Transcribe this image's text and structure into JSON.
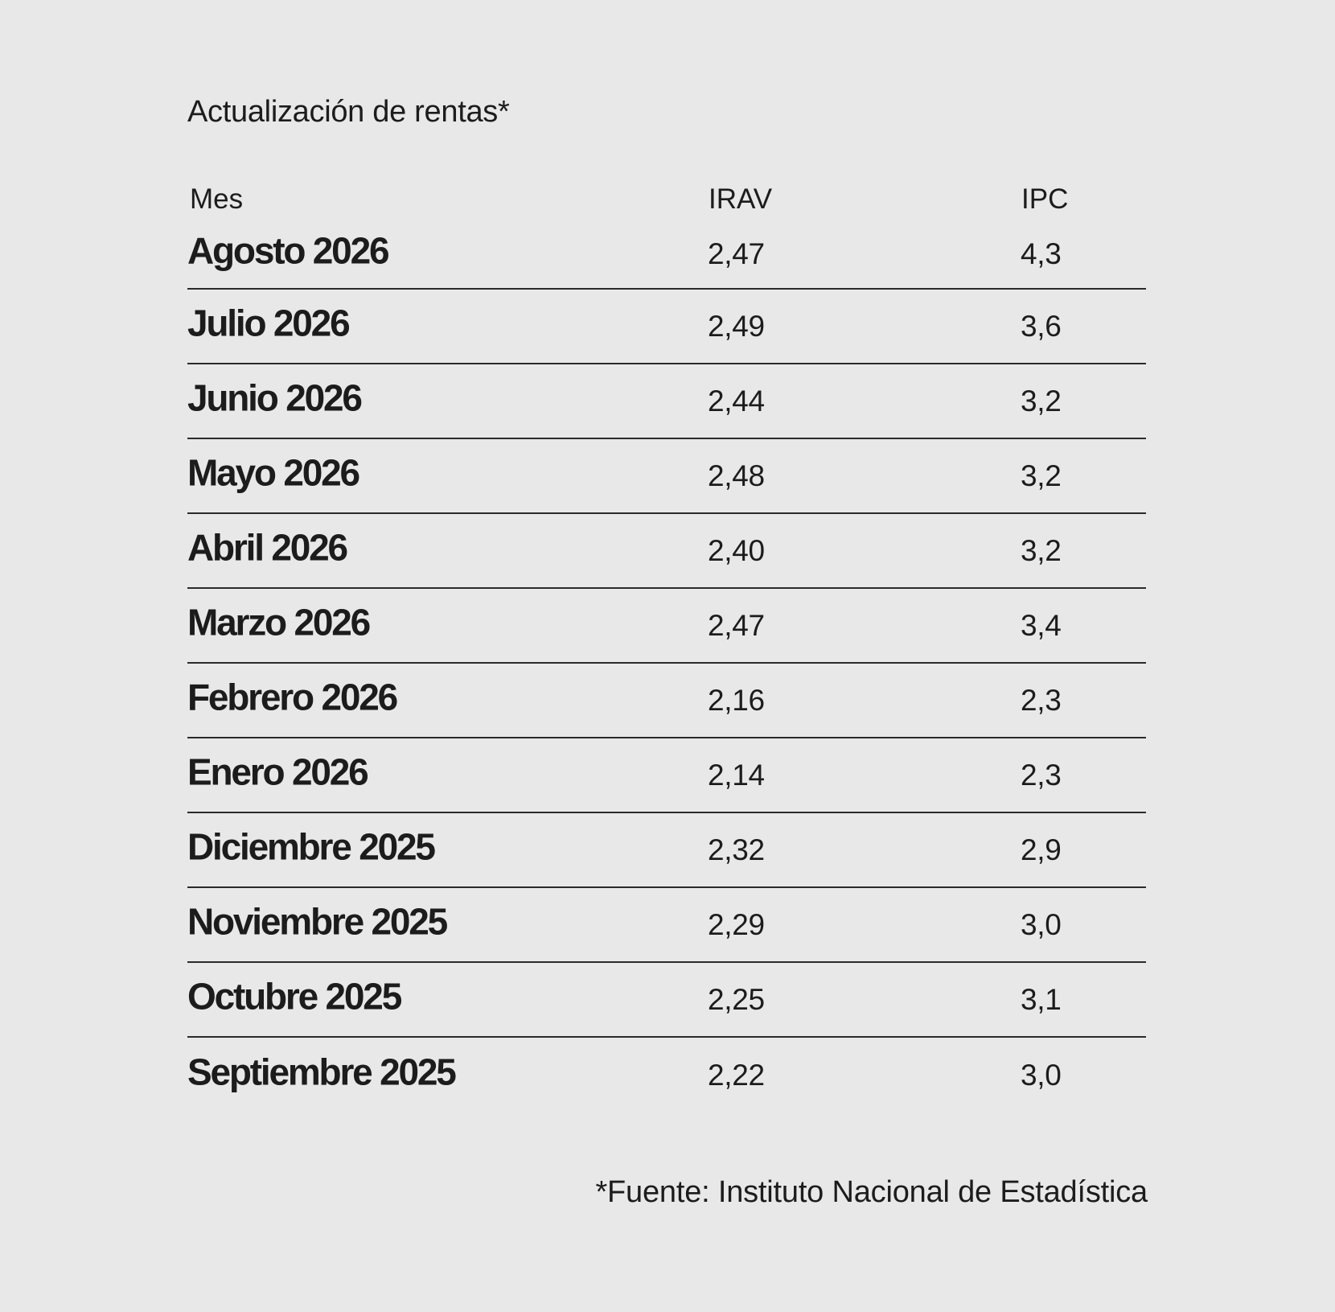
{
  "title": "Actualización de rentas*",
  "table": {
    "headers": {
      "mes": "Mes",
      "irav": "IRAV",
      "ipc": "IPC"
    },
    "rows": [
      {
        "mes": "Agosto 2026",
        "irav": "2,47",
        "ipc": "4,3"
      },
      {
        "mes": "Julio 2026",
        "irav": "2,49",
        "ipc": "3,6"
      },
      {
        "mes": "Junio 2026",
        "irav": "2,44",
        "ipc": "3,2"
      },
      {
        "mes": "Mayo 2026",
        "irav": "2,48",
        "ipc": "3,2"
      },
      {
        "mes": "Abril 2026",
        "irav": "2,40",
        "ipc": "3,2"
      },
      {
        "mes": "Marzo 2026",
        "irav": "2,47",
        "ipc": "3,4"
      },
      {
        "mes": "Febrero 2026",
        "irav": "2,16",
        "ipc": "2,3"
      },
      {
        "mes": "Enero 2026",
        "irav": "2,14",
        "ipc": "2,3"
      },
      {
        "mes": "Diciembre 2025",
        "irav": "2,32",
        "ipc": "2,9"
      },
      {
        "mes": "Noviembre 2025",
        "irav": "2,29",
        "ipc": "3,0"
      },
      {
        "mes": "Octubre 2025",
        "irav": "2,25",
        "ipc": "3,1"
      },
      {
        "mes": "Septiembre 2025",
        "irav": "2,22",
        "ipc": "3,0"
      }
    ]
  },
  "footnote": "*Fuente: Instituto Nacional de Estadística"
}
